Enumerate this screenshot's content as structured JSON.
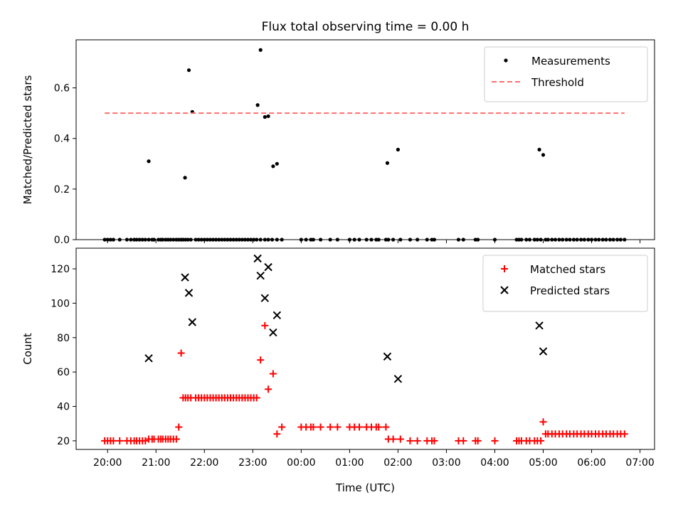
{
  "chart_data": [
    {
      "type": "scatter",
      "title": "Flux total observing time = 0.00 h",
      "xlabel": "",
      "ylabel": "Matched/Predicted stars",
      "xlim": [
        -0.65,
        11.3
      ],
      "ylim": [
        0,
        0.79
      ],
      "yticks": [
        0.0,
        0.2,
        0.4,
        0.6
      ],
      "ytick_labels": [
        "0.0",
        "0.2",
        "0.4",
        "0.6"
      ],
      "xticks": [
        0,
        1,
        2,
        3,
        4,
        5,
        6,
        7,
        8,
        9,
        10,
        11
      ],
      "grid": false,
      "legend": "top-right",
      "series": [
        {
          "name": "Measurements",
          "kind": "scatter",
          "color": "#000000",
          "marker": "dot",
          "x": [
            -0.06,
            0.0,
            0.06,
            0.12,
            0.25,
            0.4,
            0.48,
            0.55,
            0.6,
            0.66,
            0.72,
            0.78,
            0.85,
            0.92,
            0.96,
            1.05,
            1.1,
            1.14,
            1.2,
            1.25,
            1.3,
            1.36,
            1.42,
            1.47,
            1.52,
            1.56,
            1.61,
            1.66,
            1.72,
            1.82,
            1.88,
            1.94,
            2.0,
            2.06,
            2.12,
            2.18,
            2.24,
            2.3,
            2.36,
            2.42,
            2.48,
            2.54,
            2.6,
            2.66,
            2.72,
            2.78,
            2.84,
            2.9,
            2.96,
            3.02,
            3.08,
            3.16,
            3.25,
            3.32,
            3.4,
            3.5,
            3.6,
            4.0,
            4.1,
            4.2,
            4.25,
            4.4,
            4.6,
            4.75,
            5.0,
            5.1,
            5.2,
            5.35,
            5.45,
            5.55,
            5.6,
            5.75,
            5.8,
            5.9,
            6.05,
            6.25,
            6.4,
            6.6,
            6.7,
            6.75,
            7.25,
            7.35,
            7.6,
            7.65,
            8.0,
            8.45,
            8.5,
            8.55,
            8.65,
            8.72,
            8.82,
            8.88,
            8.95,
            9.05,
            9.1,
            9.18,
            9.25,
            9.33,
            9.4,
            9.48,
            9.55,
            9.63,
            9.7,
            9.78,
            9.85,
            9.93,
            10.0,
            10.08,
            10.15,
            10.23,
            10.3,
            10.38,
            10.45,
            10.53,
            10.6,
            10.68,
            0.85,
            1.6,
            1.68,
            1.75,
            3.1,
            3.16,
            3.25,
            3.32,
            3.42,
            3.5,
            5.78,
            6.0,
            8.92,
            9.0
          ],
          "y": [
            0,
            0,
            0,
            0,
            0,
            0,
            0,
            0,
            0,
            0,
            0,
            0,
            0,
            0,
            0,
            0,
            0,
            0,
            0,
            0,
            0,
            0,
            0,
            0,
            0,
            0,
            0,
            0,
            0,
            0,
            0,
            0,
            0,
            0,
            0,
            0,
            0,
            0,
            0,
            0,
            0,
            0,
            0,
            0,
            0,
            0,
            0,
            0,
            0,
            0,
            0,
            0,
            0,
            0,
            0,
            0,
            0,
            0,
            0,
            0,
            0,
            0,
            0,
            0,
            0,
            0,
            0,
            0,
            0,
            0,
            0,
            0,
            0,
            0,
            0,
            0,
            0,
            0,
            0,
            0,
            0,
            0,
            0,
            0,
            0,
            0,
            0,
            0,
            0,
            0,
            0,
            0,
            0,
            0,
            0,
            0,
            0,
            0,
            0,
            0,
            0,
            0,
            0,
            0,
            0,
            0,
            0,
            0,
            0,
            0,
            0,
            0,
            0,
            0,
            0,
            0,
            0.31,
            0.245,
            0.67,
            0.505,
            0.532,
            0.75,
            0.485,
            0.488,
            0.29,
            0.3,
            0.303,
            0.356,
            0.356,
            0.335
          ]
        },
        {
          "name": "Threshold",
          "kind": "line",
          "color": "#ff6f6f",
          "dash": "dashed",
          "x": [
            -0.06,
            10.68
          ],
          "y": [
            0.5,
            0.5
          ]
        }
      ]
    },
    {
      "type": "scatter",
      "title": "",
      "xlabel": "Time (UTC)",
      "ylabel": "Count",
      "xlim": [
        -0.65,
        11.3
      ],
      "ylim": [
        15,
        132
      ],
      "yticks": [
        20,
        40,
        60,
        80,
        100,
        120
      ],
      "ytick_labels": [
        "20",
        "40",
        "60",
        "80",
        "100",
        "120"
      ],
      "xticks": [
        0,
        1,
        2,
        3,
        4,
        5,
        6,
        7,
        8,
        9,
        10,
        11
      ],
      "xtick_labels": [
        "20:00",
        "21:00",
        "22:00",
        "23:00",
        "00:00",
        "01:00",
        "02:00",
        "03:00",
        "04:00",
        "05:00",
        "06:00",
        "07:00"
      ],
      "grid": false,
      "legend": "top-right",
      "series": [
        {
          "name": "Matched stars",
          "kind": "scatter",
          "color": "#ff0000",
          "marker": "plus",
          "x": [
            -0.06,
            0.0,
            0.06,
            0.12,
            0.25,
            0.4,
            0.48,
            0.55,
            0.6,
            0.66,
            0.72,
            0.78,
            0.85,
            0.92,
            0.96,
            1.05,
            1.1,
            1.14,
            1.2,
            1.25,
            1.3,
            1.36,
            1.42,
            1.47,
            1.52,
            1.56,
            1.61,
            1.66,
            1.72,
            1.82,
            1.88,
            1.94,
            2.0,
            2.06,
            2.12,
            2.18,
            2.24,
            2.3,
            2.36,
            2.42,
            2.48,
            2.54,
            2.6,
            2.66,
            2.72,
            2.78,
            2.84,
            2.9,
            2.96,
            3.02,
            3.08,
            3.16,
            3.25,
            3.32,
            3.42,
            3.5,
            3.6,
            4.0,
            4.1,
            4.2,
            4.25,
            4.4,
            4.6,
            4.75,
            5.0,
            5.1,
            5.2,
            5.35,
            5.45,
            5.55,
            5.6,
            5.75,
            5.8,
            5.9,
            6.05,
            6.25,
            6.4,
            6.6,
            6.7,
            6.75,
            7.25,
            7.35,
            7.6,
            7.65,
            8.0,
            8.45,
            8.5,
            8.55,
            8.65,
            8.72,
            8.82,
            8.88,
            8.95,
            9.0,
            9.05,
            9.1,
            9.18,
            9.25,
            9.33,
            9.4,
            9.48,
            9.55,
            9.63,
            9.7,
            9.78,
            9.85,
            9.93,
            10.0,
            10.08,
            10.15,
            10.23,
            10.3,
            10.38,
            10.45,
            10.53,
            10.6,
            10.68
          ],
          "y": [
            20,
            20,
            20,
            20,
            20,
            20,
            20,
            20,
            20,
            20,
            20,
            20,
            21,
            21,
            21,
            21,
            21,
            21,
            21,
            21,
            21,
            21,
            21,
            28,
            71,
            45,
            45,
            45,
            45,
            45,
            45,
            45,
            45,
            45,
            45,
            45,
            45,
            45,
            45,
            45,
            45,
            45,
            45,
            45,
            45,
            45,
            45,
            45,
            45,
            45,
            45,
            67,
            87,
            50,
            59,
            24,
            28,
            28,
            28,
            28,
            28,
            28,
            28,
            28,
            28,
            28,
            28,
            28,
            28,
            28,
            28,
            28,
            21,
            21,
            21,
            20,
            20,
            20,
            20,
            20,
            20,
            20,
            20,
            20,
            20,
            20,
            20,
            20,
            20,
            20,
            20,
            20,
            20,
            31,
            24,
            24,
            24,
            24,
            24,
            24,
            24,
            24,
            24,
            24,
            24,
            24,
            24,
            24,
            24,
            24,
            24,
            24,
            24,
            24,
            24,
            24,
            24
          ]
        },
        {
          "name": "Predicted stars",
          "kind": "scatter",
          "color": "#000000",
          "marker": "x",
          "x": [
            0.85,
            1.6,
            1.68,
            1.75,
            3.1,
            3.16,
            3.25,
            3.32,
            3.42,
            3.5,
            5.78,
            6.0,
            8.92,
            9.0
          ],
          "y": [
            68,
            115,
            106,
            89,
            126,
            116,
            103,
            121,
            83,
            93,
            69,
            56,
            87,
            72
          ]
        }
      ]
    }
  ]
}
